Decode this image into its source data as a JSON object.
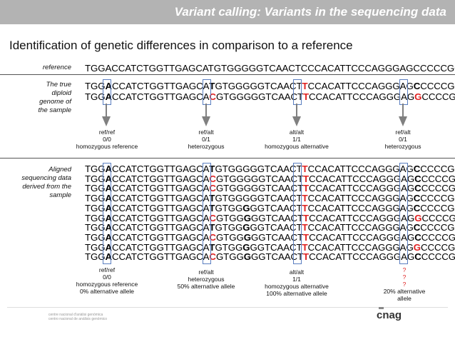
{
  "header": {
    "title": "Variant calling: Variants in the sequencing data"
  },
  "subtitle": "Identification of genetic differences in comparison to a reference",
  "reference": {
    "label": "reference",
    "sequence": "TGGACCATCTGGTTGAGCATGTGGGGGTCAACTCCCACATTCCCAGGGAGCCCCCGG"
  },
  "diploid": {
    "label": [
      "The true",
      "diploid",
      "genome of",
      "the sample"
    ],
    "rows": [
      [
        [
          "TGG",
          ""
        ],
        [
          "A",
          "hl"
        ],
        [
          "CCATCTGGTTGAGCA",
          ""
        ],
        [
          "T",
          "hl"
        ],
        [
          "GTGGGGGTCAACT",
          ""
        ],
        [
          "T",
          "red"
        ],
        [
          "CCACATTCCCAGGGAG",
          ""
        ],
        [
          "C",
          "hl"
        ],
        [
          "CCCCGG",
          ""
        ]
      ],
      [
        [
          "TGG",
          ""
        ],
        [
          "A",
          "hl"
        ],
        [
          "CCATCTGGTTGAGCA",
          ""
        ],
        [
          "C",
          "red"
        ],
        [
          "GTGGGGGTCAACT",
          ""
        ],
        [
          "T",
          "red"
        ],
        [
          "CCACATTCCCAGGGAG",
          ""
        ],
        [
          "G",
          "red"
        ],
        [
          "CCCCGG",
          ""
        ]
      ]
    ]
  },
  "genotypes": [
    {
      "lines": [
        "ref/ref",
        "0/0",
        "homozygous reference"
      ]
    },
    {
      "lines": [
        "ref/alt",
        "0/1",
        "heterozygous"
      ]
    },
    {
      "lines": [
        "alt/alt",
        "1/1",
        "homozygous alternative"
      ]
    },
    {
      "lines": [
        "ref/alt",
        "0/1",
        "heterozygous"
      ]
    }
  ],
  "aligned": {
    "label": [
      "Aligned",
      "sequencing data",
      "derived from the",
      "sample"
    ],
    "rows": [
      [
        [
          "TGG",
          ""
        ],
        [
          "A",
          "hl"
        ],
        [
          "CCATCTGGTTGAGCA",
          ""
        ],
        [
          "T",
          "hl"
        ],
        [
          "GTGGGGGTCAACT",
          ""
        ],
        [
          "T",
          "red"
        ],
        [
          "CCACATTCCCAGGGAG",
          ""
        ],
        [
          "C",
          "hl"
        ],
        [
          "CCCCGG",
          ""
        ]
      ],
      [
        [
          "TGG",
          ""
        ],
        [
          "A",
          "hl"
        ],
        [
          "CCATCTGGTTGAGCA",
          ""
        ],
        [
          "C",
          "red"
        ],
        [
          "GTGGGGGTCAACT",
          ""
        ],
        [
          "T",
          "red"
        ],
        [
          "CCACATTCCCAGGGAG",
          ""
        ],
        [
          "C",
          "hl"
        ],
        [
          "CCCCGG",
          ""
        ]
      ],
      [
        [
          "TGG",
          ""
        ],
        [
          "A",
          "hl"
        ],
        [
          "CCATCTGGTTGAGCA",
          ""
        ],
        [
          "C",
          "red"
        ],
        [
          "GTGGGGGTCAACT",
          ""
        ],
        [
          "T",
          "red"
        ],
        [
          "CCACATTCCCAGGGAG",
          ""
        ],
        [
          "C",
          "hl"
        ],
        [
          "CCCCGG",
          ""
        ]
      ],
      [
        [
          "TGG",
          ""
        ],
        [
          "A",
          "hl"
        ],
        [
          "CCATCTGGTTGAGCA",
          ""
        ],
        [
          "T",
          "hl"
        ],
        [
          "GTGGGGGTCAACT",
          ""
        ],
        [
          "T",
          "red"
        ],
        [
          "CCACATTCCCAGGGAG",
          ""
        ],
        [
          "C",
          "hl"
        ],
        [
          "CCCCGG",
          ""
        ]
      ],
      [
        [
          "TGG",
          ""
        ],
        [
          "A",
          "hl"
        ],
        [
          "CCATCTGGTTGAGCA",
          ""
        ],
        [
          "T",
          "hl"
        ],
        [
          "GTGG",
          ""
        ],
        [
          "G",
          "hl"
        ],
        [
          "GGTCAACT",
          ""
        ],
        [
          "T",
          "red"
        ],
        [
          "CCACATTCCCAGGGAG",
          ""
        ],
        [
          "C",
          "hl"
        ],
        [
          "CCCCGG",
          ""
        ]
      ],
      [
        [
          "TGG",
          ""
        ],
        [
          "A",
          "hl"
        ],
        [
          "CCATCTGGTTGAGCA",
          ""
        ],
        [
          "C",
          "red"
        ],
        [
          "GTGG",
          ""
        ],
        [
          "G",
          "hl"
        ],
        [
          "GGTCAACT",
          ""
        ],
        [
          "T",
          "red"
        ],
        [
          "CCACATTCCCAGGGAG",
          ""
        ],
        [
          "G",
          "red"
        ],
        [
          "CCCCGG",
          ""
        ]
      ],
      [
        [
          "TGG",
          ""
        ],
        [
          "A",
          "hl"
        ],
        [
          "CCATCTGGTTGAGCA",
          ""
        ],
        [
          "T",
          "hl"
        ],
        [
          "GTGG",
          ""
        ],
        [
          "G",
          "hl"
        ],
        [
          "GGTCAACT",
          ""
        ],
        [
          "T",
          "red"
        ],
        [
          "CCACATTCCCAGGGAG",
          ""
        ],
        [
          "C",
          "hl"
        ],
        [
          "CCCCGG",
          ""
        ]
      ],
      [
        [
          "TGG",
          ""
        ],
        [
          "A",
          "hl"
        ],
        [
          "CCATCTGGTTGAGCA",
          ""
        ],
        [
          "C",
          "red"
        ],
        [
          "GTGG",
          ""
        ],
        [
          "G",
          "hl"
        ],
        [
          "GGTCAACT",
          ""
        ],
        [
          "T",
          "red"
        ],
        [
          "CCACATTCCCAGGGAG",
          ""
        ],
        [
          "C",
          "hl"
        ],
        [
          "CCCCGG",
          ""
        ]
      ],
      [
        [
          "TGG",
          ""
        ],
        [
          "A",
          "hl"
        ],
        [
          "CCATCTGGTTGAGCA",
          ""
        ],
        [
          "T",
          "hl"
        ],
        [
          "GTGG",
          ""
        ],
        [
          "G",
          "hl"
        ],
        [
          "GGTCAACT",
          ""
        ],
        [
          "T",
          "red"
        ],
        [
          "CCACATTCCCAGGGAG",
          ""
        ],
        [
          "G",
          "red"
        ],
        [
          "CCCCGG",
          ""
        ]
      ],
      [
        [
          "TGG",
          ""
        ],
        [
          "A",
          "hl"
        ],
        [
          "CCATCTGGTTGAGCA",
          ""
        ],
        [
          "C",
          "red"
        ],
        [
          "GTGG",
          ""
        ],
        [
          "G",
          "hl"
        ],
        [
          "GGTCAACT",
          ""
        ],
        [
          "T",
          "red"
        ],
        [
          "CCACATTCCCAGGGAG",
          ""
        ],
        [
          "C",
          "hl"
        ],
        [
          "CCCCGG",
          ""
        ]
      ]
    ]
  },
  "calls": [
    {
      "lines": [
        "ref/ref",
        "0/0",
        "homozygous reference",
        "0% alternative allele"
      ],
      "red_lines": []
    },
    {
      "lines": [
        "ref/alt",
        "heterozygous",
        "50% alternative allele"
      ],
      "red_lines": []
    },
    {
      "lines": [
        "alt/alt",
        "1/1",
        "homozygous alternative",
        "100% alternative allele"
      ],
      "red_lines": []
    },
    {
      "lines": [
        "?",
        "?",
        "?",
        "20% alternative",
        "allele"
      ],
      "red_lines": [
        0,
        1,
        2
      ]
    }
  ],
  "footer": {
    "lines": [
      "centre nacional d'anàlisi genòmica",
      "centro nacional de análisis genómico"
    ],
    "logo": "cnag"
  },
  "colors": {
    "variant": "#e02020",
    "box": "#5a7ec0",
    "arrow": "#808080",
    "header": "#b3b3b3"
  }
}
